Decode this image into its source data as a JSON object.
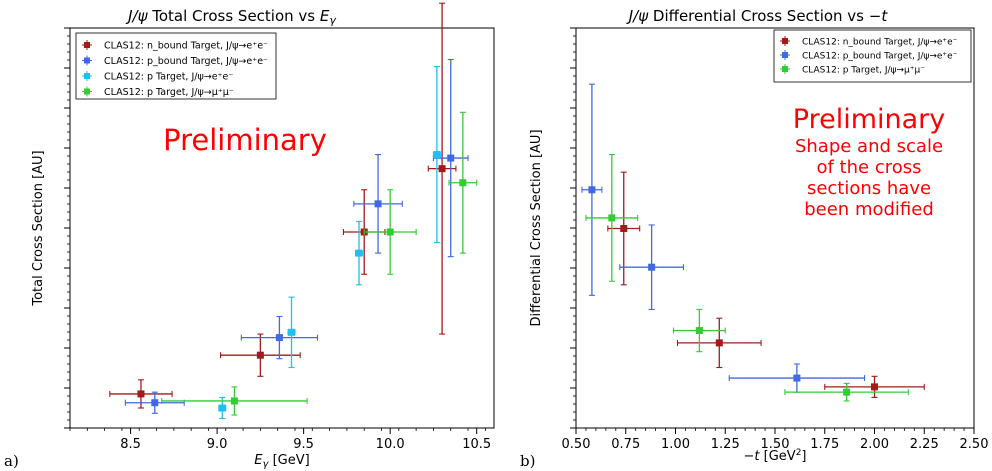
{
  "panel_labels": [
    "a)",
    "b)"
  ],
  "chart_data": [
    {
      "type": "scatter",
      "title": "J/ψ Total Cross Section vs E_γ",
      "xlabel": "E_γ [GeV]",
      "ylabel": "Total Cross Section [AU]",
      "xlim": [
        8.15,
        10.6
      ],
      "ylim": [
        0,
        1
      ],
      "xticks": [
        8.5,
        9.0,
        9.5,
        10.0,
        10.5
      ],
      "xtick_labels": [
        "8.5",
        "9.0",
        "9.5",
        "10.0",
        "10.5"
      ],
      "y_tick_labels_shown": false,
      "grid": false,
      "legend_position": "top-left",
      "annotations": [
        {
          "text": "Preliminary",
          "color": "#ff0000",
          "size": "large"
        }
      ],
      "series": [
        {
          "name": "CLAS12: n_bound Target, J/ψ→e⁺e⁻",
          "color": "#a31a1a",
          "points": [
            {
              "x": 8.56,
              "y": 0.04,
              "xerr": 0.18,
              "yerr": 0.04
            },
            {
              "x": 9.25,
              "y": 0.15,
              "xerr": 0.23,
              "yerr": 0.06
            },
            {
              "x": 9.85,
              "y": 0.5,
              "xerr": 0.12,
              "yerr": 0.12
            },
            {
              "x": 10.3,
              "y": 0.68,
              "xerr": 0.08,
              "yerr": 0.47
            }
          ]
        },
        {
          "name": "CLAS12: p_bound Target, J/ψ→e⁺e⁻",
          "color": "#4169e1",
          "points": [
            {
              "x": 8.64,
              "y": 0.015,
              "xerr": 0.17,
              "yerr": 0.03
            },
            {
              "x": 9.36,
              "y": 0.2,
              "xerr": 0.22,
              "yerr": 0.06
            },
            {
              "x": 9.93,
              "y": 0.58,
              "xerr": 0.14,
              "yerr": 0.14
            },
            {
              "x": 10.35,
              "y": 0.71,
              "xerr": 0.1,
              "yerr": 0.28
            }
          ]
        },
        {
          "name": "CLAS12: p Target, J/ψ→e⁺e⁻",
          "color": "#1fbfef",
          "points": [
            {
              "x": 9.03,
              "y": 0.0,
              "xerr": 0.02,
              "yerr": 0.03
            },
            {
              "x": 9.43,
              "y": 0.215,
              "xerr": 0.02,
              "yerr": 0.1
            },
            {
              "x": 9.82,
              "y": 0.44,
              "xerr": 0.02,
              "yerr": 0.09
            },
            {
              "x": 10.27,
              "y": 0.72,
              "xerr": 0.02,
              "yerr": 0.25
            }
          ]
        },
        {
          "name": "CLAS12: p Target, J/ψ→μ⁺μ⁻",
          "color": "#33cc33",
          "points": [
            {
              "x": 9.1,
              "y": 0.02,
              "xerr": 0.42,
              "yerr": 0.04
            },
            {
              "x": 10.0,
              "y": 0.5,
              "xerr": 0.15,
              "yerr": 0.12
            },
            {
              "x": 10.42,
              "y": 0.64,
              "xerr": 0.08,
              "yerr": 0.2
            }
          ]
        }
      ]
    },
    {
      "type": "scatter",
      "title": "J/ψ Differential Cross Section vs −t",
      "xlabel": "−t [GeV²]",
      "ylabel": "Differential Cross Section [AU]",
      "xlim": [
        0.5,
        2.5
      ],
      "ylim": [
        0,
        1
      ],
      "xticks": [
        0.5,
        0.75,
        1.0,
        1.25,
        1.5,
        1.75,
        2.0,
        2.25,
        2.5
      ],
      "xtick_labels": [
        "0.50",
        "0.75",
        "1.00",
        "1.25",
        "1.50",
        "1.75",
        "2.00",
        "2.25",
        "2.50"
      ],
      "y_tick_labels_shown": false,
      "grid": false,
      "legend_position": "top-right",
      "annotations": [
        {
          "text": "Preliminary",
          "color": "#ff0000",
          "size": "large"
        },
        {
          "text": "Shape and scale",
          "color": "#ff0000",
          "size": "medium"
        },
        {
          "text": "of the cross",
          "color": "#ff0000",
          "size": "medium"
        },
        {
          "text": "sections have",
          "color": "#ff0000",
          "size": "medium"
        },
        {
          "text": "been modified",
          "color": "#ff0000",
          "size": "medium"
        }
      ],
      "series": [
        {
          "name": "CLAS12: n_bound Target, J/ψ→e⁺e⁻",
          "color": "#a31a1a",
          "points": [
            {
              "x": 0.74,
              "y": 0.51,
              "xerr": 0.08,
              "yerr": 0.16
            },
            {
              "x": 1.22,
              "y": 0.185,
              "xerr": 0.21,
              "yerr": 0.07
            },
            {
              "x": 2.0,
              "y": 0.06,
              "xerr": 0.25,
              "yerr": 0.03
            }
          ]
        },
        {
          "name": "CLAS12: p_bound Target, J/ψ→e⁺e⁻",
          "color": "#4169e1",
          "points": [
            {
              "x": 0.58,
              "y": 0.62,
              "xerr": 0.05,
              "yerr": 0.3
            },
            {
              "x": 0.88,
              "y": 0.4,
              "xerr": 0.16,
              "yerr": 0.12
            },
            {
              "x": 1.61,
              "y": 0.085,
              "xerr": 0.34,
              "yerr": 0.04
            }
          ]
        },
        {
          "name": "CLAS12: p Target, J/ψ→μ⁺μ⁻",
          "color": "#33cc33",
          "points": [
            {
              "x": 0.68,
              "y": 0.54,
              "xerr": 0.13,
              "yerr": 0.18
            },
            {
              "x": 1.12,
              "y": 0.22,
              "xerr": 0.13,
              "yerr": 0.06
            },
            {
              "x": 1.86,
              "y": 0.045,
              "xerr": 0.31,
              "yerr": 0.025
            }
          ]
        }
      ]
    }
  ]
}
